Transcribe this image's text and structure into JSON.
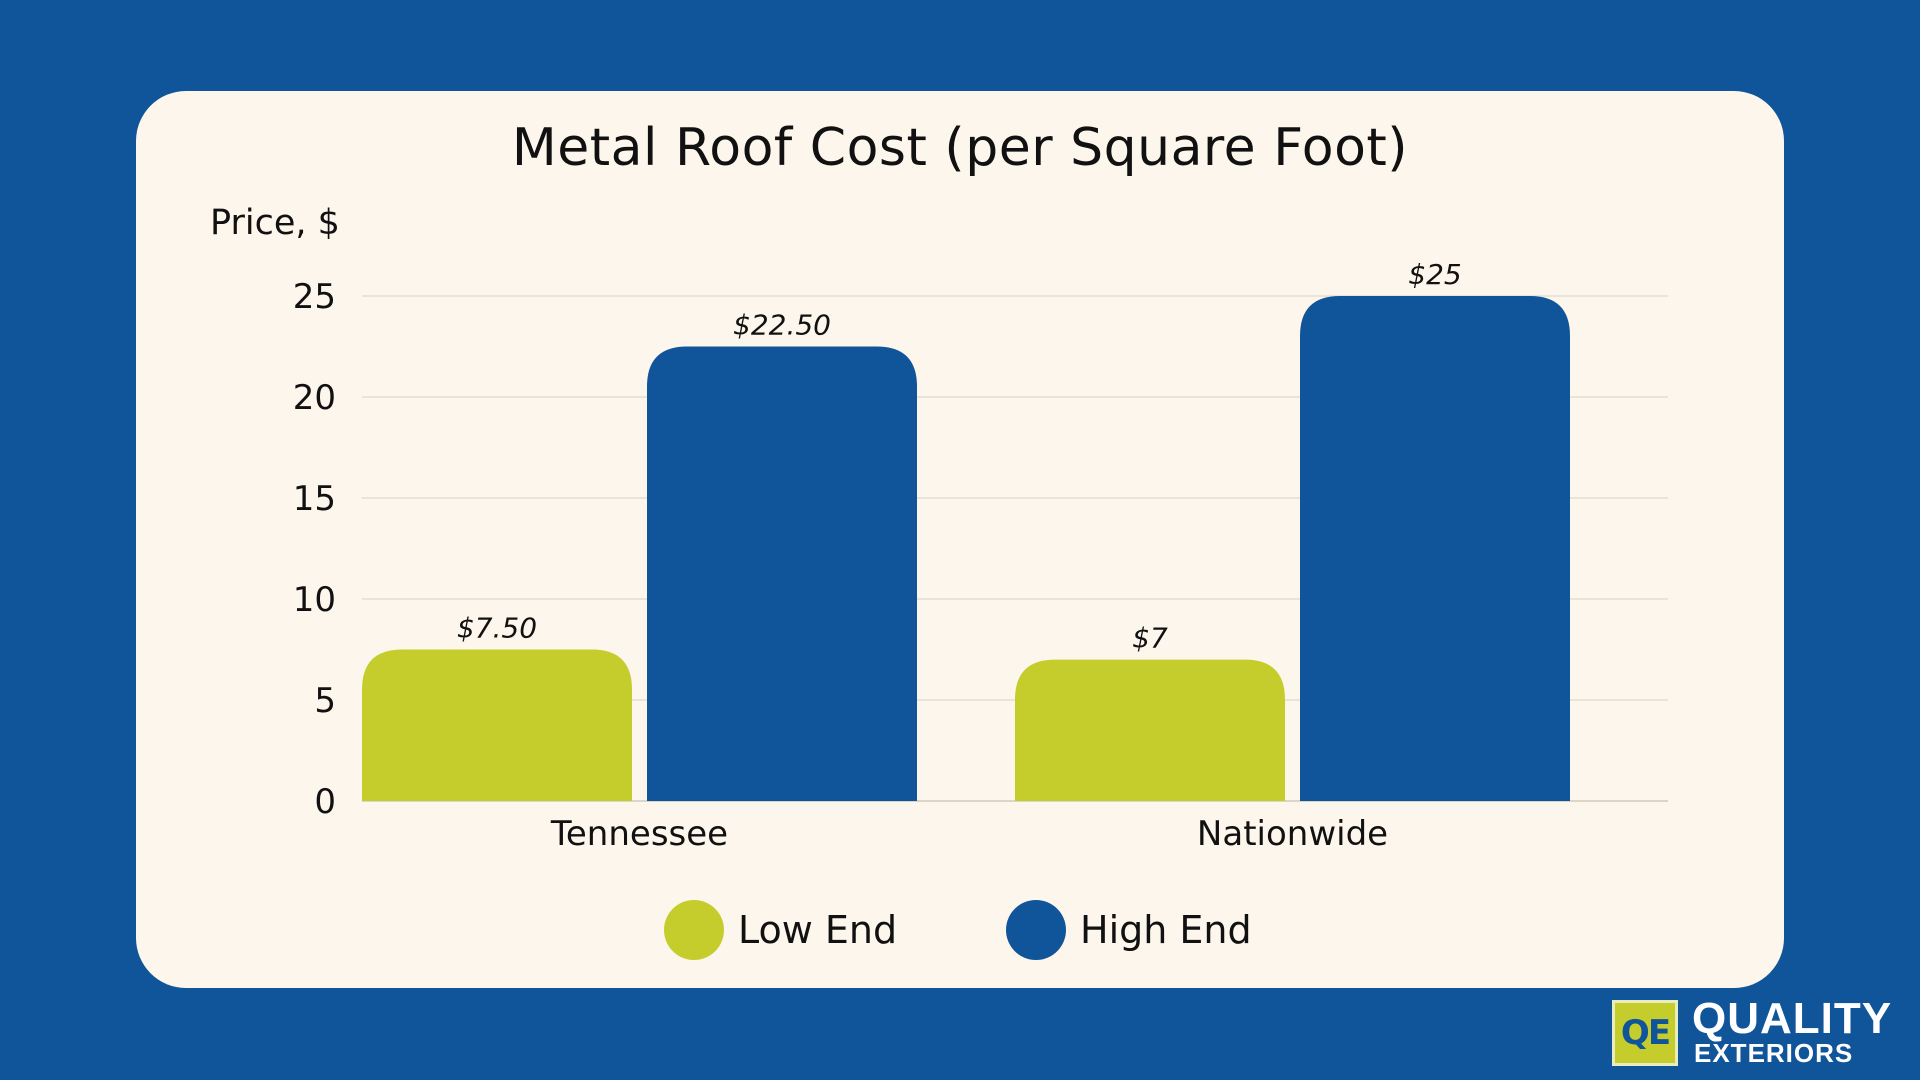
{
  "colors": {
    "background": "#10559a",
    "card": "#fdf6ec",
    "low_end": "#c5cd2c",
    "high_end": "#10559a",
    "grid": "#e4ddd2"
  },
  "chart_data": {
    "type": "bar",
    "title": "Metal Roof Cost (per Square Foot)",
    "xlabel": "",
    "ylabel": "Price, $",
    "categories": [
      "Tennessee",
      "Nationwide"
    ],
    "series": [
      {
        "name": "Low End",
        "values": [
          7.5,
          7
        ],
        "labels": [
          "$7.50",
          "$7"
        ],
        "color": "#c5cd2c"
      },
      {
        "name": "High End",
        "values": [
          22.5,
          25
        ],
        "labels": [
          "$22.50",
          "$25"
        ],
        "color": "#10559a"
      }
    ],
    "ylim": [
      0,
      25
    ],
    "yticks": [
      0,
      5,
      10,
      15,
      20,
      25
    ],
    "grid": true,
    "legend_position": "bottom"
  },
  "logo": {
    "mark": "QE",
    "line1": "QUALITY",
    "line2": "EXTERIORS"
  }
}
